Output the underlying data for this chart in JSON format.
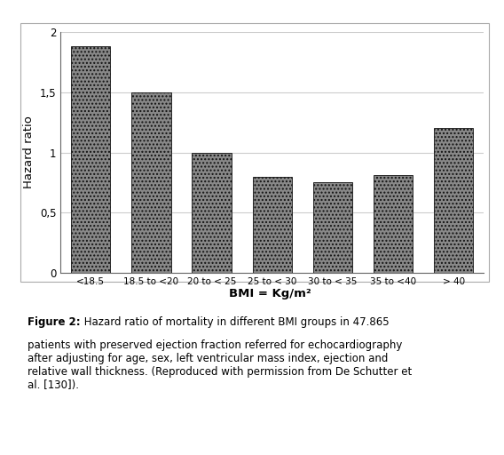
{
  "categories": [
    "<18.5",
    "18.5 to <20",
    "20 to < 25",
    "25 to < 30",
    "30 to < 35",
    "35 to <40",
    "> 40"
  ],
  "values": [
    1.88,
    1.5,
    1.0,
    0.8,
    0.75,
    0.81,
    1.2
  ],
  "ylabel": "Hazard ratio",
  "xlabel": "BMI = Kg/m²",
  "ylim": [
    0,
    2.0
  ],
  "yticks": [
    0,
    0.5,
    1,
    1.5,
    2
  ],
  "ytick_labels": [
    "0",
    "0,5",
    "1",
    "1,5",
    "2"
  ],
  "bar_edgecolor": "#111111",
  "background_color": "#ffffff",
  "border_color": "#bbbbbb",
  "grid_color": "#cccccc",
  "caption_bold": "Figure 2:",
  "caption_normal": " Hazard ratio of mortality in different BMI groups in 47.865\npatients with preserved ejection fraction referred for echocardiography\nafter adjusting for age, sex, left ventricular mass index, ejection and\nrelative wall thickness. (Reproduced with permission from De Schutter et\nal. [130])."
}
